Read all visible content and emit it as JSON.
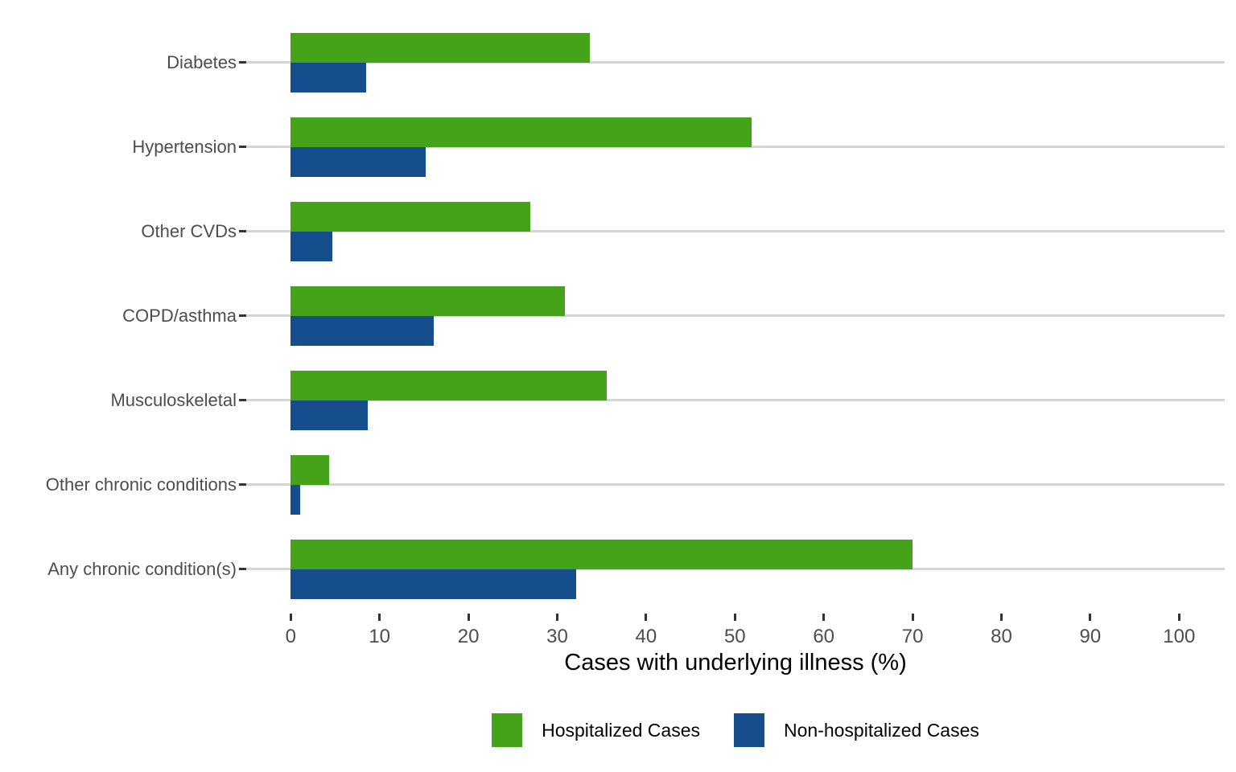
{
  "chart_data": {
    "type": "bar",
    "orientation": "horizontal",
    "title": "",
    "xlabel": "Cases with underlying illness (%)",
    "ylabel": "",
    "xlim": [
      0,
      100
    ],
    "x_ticks": [
      0,
      10,
      20,
      30,
      40,
      50,
      60,
      70,
      80,
      90,
      100
    ],
    "grid": "horizontal-major-only",
    "legend_position": "bottom",
    "background_color": "#ffffff",
    "gridline_color": "#d5d5d5",
    "tick_color": "#333333",
    "tick_label_color": "#4d4d4d",
    "categories": [
      "Diabetes",
      "Hypertension",
      "Other CVDs",
      "COPD/asthma",
      "Musculoskeletal",
      "Other chronic conditions",
      "Any chronic condition(s)"
    ],
    "series": [
      {
        "name": "Hospitalized Cases",
        "color": "#44a318",
        "values": [
          33.7,
          51.9,
          27.0,
          30.9,
          35.6,
          4.3,
          70.0
        ]
      },
      {
        "name": "Non-hospitalized Cases",
        "color": "#164d8c",
        "values": [
          8.5,
          15.2,
          4.7,
          16.1,
          8.7,
          1.1,
          32.1
        ]
      }
    ]
  }
}
